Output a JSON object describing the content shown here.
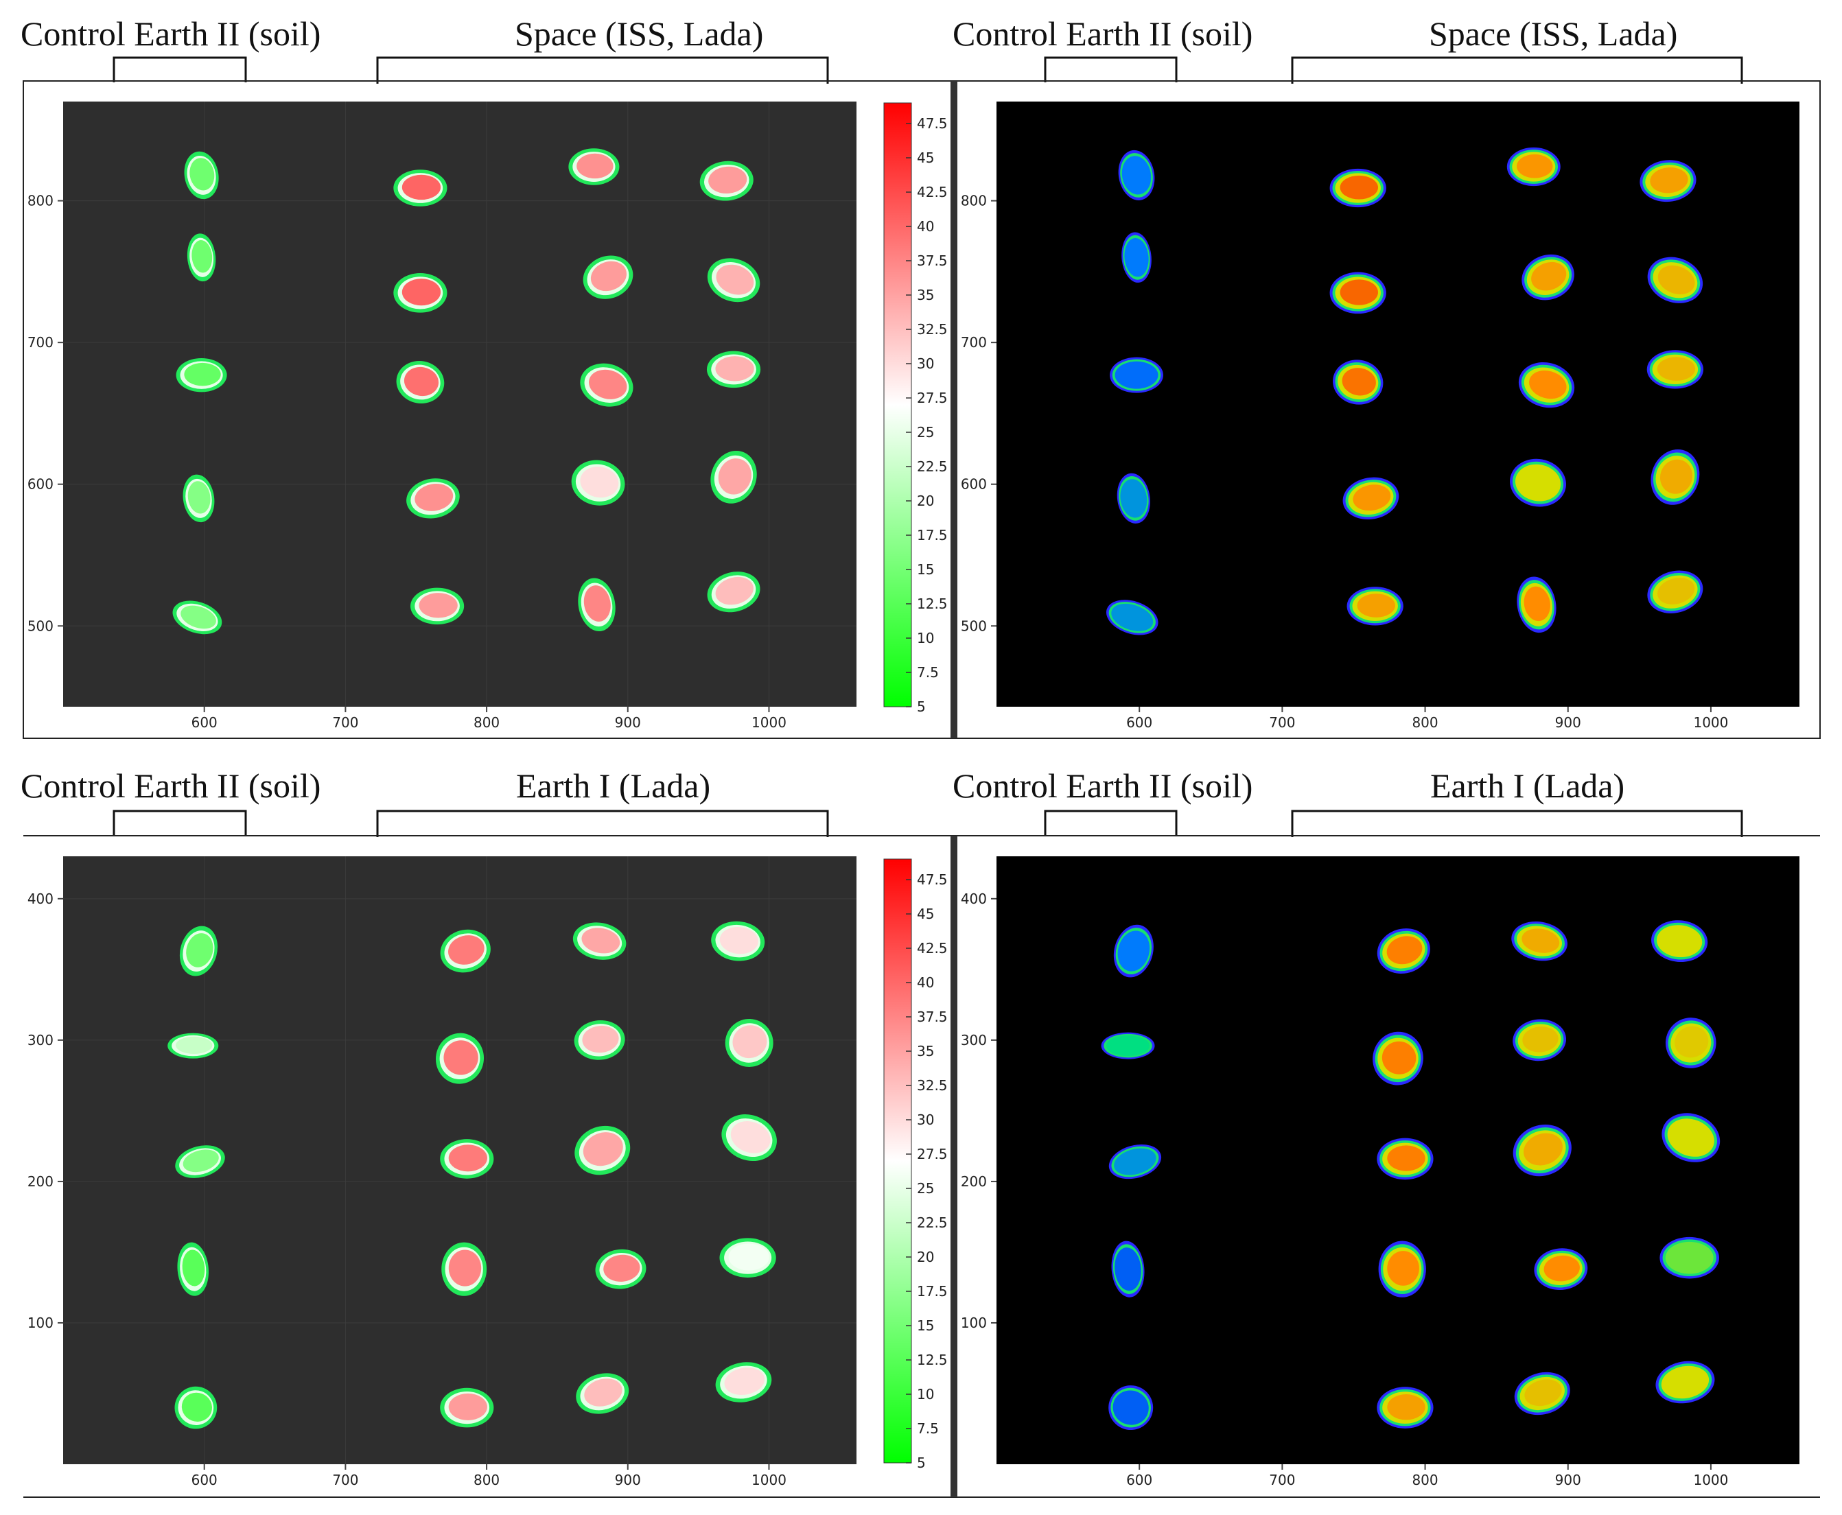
{
  "colors": {
    "page_bg": "#ffffff",
    "dark_plot_bg": "#2e2e2e",
    "black_plot_bg": "#000000",
    "separator": "#333333",
    "frame": "#222222"
  },
  "rows": [
    {
      "id": "top",
      "headings": {
        "left": {
          "control": "Control Earth II (soil)",
          "treated": "Space (ISS, Lada)"
        },
        "right": {
          "control": "Control Earth II (soil)",
          "treated": "Space (ISS, Lada)"
        }
      },
      "y_ticks": [
        "500",
        "600",
        "700",
        "800"
      ],
      "y_range": [
        443,
        870
      ],
      "x_ticks": [
        "600",
        "700",
        "800",
        "900",
        "1000"
      ],
      "x_range": [
        500,
        1062
      ],
      "colorbar_ticks": [
        "5",
        "7.5",
        "10",
        "12.5",
        "15",
        "17.5",
        "20",
        "22.5",
        "25",
        "27.5",
        "30",
        "32.5",
        "35",
        "37.5",
        "40",
        "42.5",
        "45",
        "47.5"
      ]
    },
    {
      "id": "bottom",
      "headings": {
        "left": {
          "control": "Control Earth II (soil)",
          "treated": "Earth I  (Lada)"
        },
        "right": {
          "control": "Control Earth II (soil)",
          "treated": "Earth I  (Lada)"
        }
      },
      "y_ticks": [
        "100",
        "200",
        "300",
        "400"
      ],
      "y_range": [
        0,
        430
      ],
      "x_ticks": [
        "600",
        "700",
        "800",
        "900",
        "1000"
      ],
      "x_range": [
        500,
        1062
      ],
      "colorbar_ticks": [
        "5",
        "7.5",
        "10",
        "12.5",
        "15",
        "17.5",
        "20",
        "22.5",
        "25",
        "27.5",
        "30",
        "32.5",
        "35",
        "37.5",
        "40",
        "42.5",
        "45",
        "47.5"
      ]
    }
  ],
  "colorbar": {
    "min": 5,
    "max": 49,
    "color_low": "#00ff00",
    "color_mid": "#ffffff",
    "color_high": "#ff0000"
  },
  "seeds": {
    "top": [
      {
        "x": 598,
        "y": 818,
        "rx": 12,
        "ry": 17,
        "rot": -10,
        "v": 14,
        "group": "control"
      },
      {
        "x": 598,
        "y": 760,
        "rx": 10,
        "ry": 17,
        "rot": -5,
        "v": 14,
        "group": "control"
      },
      {
        "x": 598,
        "y": 677,
        "rx": 18,
        "ry": 12,
        "rot": 0,
        "v": 13,
        "group": "control"
      },
      {
        "x": 596,
        "y": 590,
        "rx": 11,
        "ry": 17,
        "rot": -8,
        "v": 16,
        "group": "control"
      },
      {
        "x": 595,
        "y": 506,
        "rx": 18,
        "ry": 11,
        "rot": 18,
        "v": 16,
        "group": "control"
      },
      {
        "x": 753,
        "y": 809,
        "rx": 19,
        "ry": 13,
        "rot": 0,
        "v": 41,
        "group": "treated"
      },
      {
        "x": 753,
        "y": 735,
        "rx": 19,
        "ry": 14,
        "rot": 0,
        "v": 41,
        "group": "treated"
      },
      {
        "x": 753,
        "y": 672,
        "rx": 17,
        "ry": 15,
        "rot": 10,
        "v": 40,
        "group": "treated"
      },
      {
        "x": 762,
        "y": 590,
        "rx": 19,
        "ry": 14,
        "rot": -10,
        "v": 37,
        "group": "treated"
      },
      {
        "x": 765,
        "y": 514,
        "rx": 19,
        "ry": 13,
        "rot": 0,
        "v": 36,
        "group": "treated"
      },
      {
        "x": 876,
        "y": 824,
        "rx": 18,
        "ry": 13,
        "rot": 0,
        "v": 37,
        "group": "treated"
      },
      {
        "x": 886,
        "y": 746,
        "rx": 18,
        "ry": 15,
        "rot": -20,
        "v": 36,
        "group": "treated"
      },
      {
        "x": 885,
        "y": 670,
        "rx": 19,
        "ry": 15,
        "rot": 15,
        "v": 38,
        "group": "treated"
      },
      {
        "x": 879,
        "y": 601,
        "rx": 19,
        "ry": 16,
        "rot": 10,
        "v": 30,
        "group": "treated"
      },
      {
        "x": 878,
        "y": 515,
        "rx": 13,
        "ry": 19,
        "rot": -10,
        "v": 38,
        "group": "treated"
      },
      {
        "x": 970,
        "y": 814,
        "rx": 19,
        "ry": 14,
        "rot": -5,
        "v": 36,
        "group": "treated"
      },
      {
        "x": 975,
        "y": 744,
        "rx": 19,
        "ry": 15,
        "rot": 20,
        "v": 34,
        "group": "treated"
      },
      {
        "x": 975,
        "y": 681,
        "rx": 19,
        "ry": 13,
        "rot": 0,
        "v": 34,
        "group": "treated"
      },
      {
        "x": 975,
        "y": 605,
        "rx": 16,
        "ry": 19,
        "rot": 20,
        "v": 35,
        "group": "treated"
      },
      {
        "x": 975,
        "y": 524,
        "rx": 19,
        "ry": 14,
        "rot": -15,
        "v": 33,
        "group": "treated"
      }
    ],
    "bottom": [
      {
        "x": 596,
        "y": 363,
        "rx": 13,
        "ry": 18,
        "rot": 15,
        "v": 14,
        "group": "control"
      },
      {
        "x": 592,
        "y": 296,
        "rx": 18,
        "ry": 9,
        "rot": 0,
        "v": 22,
        "group": "control"
      },
      {
        "x": 597,
        "y": 214,
        "rx": 18,
        "ry": 11,
        "rot": -15,
        "v": 16,
        "group": "control"
      },
      {
        "x": 592,
        "y": 138,
        "rx": 11,
        "ry": 19,
        "rot": -5,
        "v": 12,
        "group": "control"
      },
      {
        "x": 594,
        "y": 40,
        "rx": 15,
        "ry": 15,
        "rot": 20,
        "v": 12,
        "group": "control"
      },
      {
        "x": 785,
        "y": 363,
        "rx": 18,
        "ry": 15,
        "rot": -15,
        "v": 39,
        "group": "treated"
      },
      {
        "x": 781,
        "y": 287,
        "rx": 17,
        "ry": 18,
        "rot": 10,
        "v": 39,
        "group": "treated"
      },
      {
        "x": 786,
        "y": 216,
        "rx": 19,
        "ry": 14,
        "rot": 0,
        "v": 39,
        "group": "treated"
      },
      {
        "x": 784,
        "y": 138,
        "rx": 16,
        "ry": 19,
        "rot": 0,
        "v": 38,
        "group": "treated"
      },
      {
        "x": 786,
        "y": 40,
        "rx": 19,
        "ry": 14,
        "rot": 0,
        "v": 36,
        "group": "treated"
      },
      {
        "x": 880,
        "y": 370,
        "rx": 19,
        "ry": 13,
        "rot": 10,
        "v": 35,
        "group": "treated"
      },
      {
        "x": 880,
        "y": 300,
        "rx": 18,
        "ry": 14,
        "rot": -5,
        "v": 33,
        "group": "treated"
      },
      {
        "x": 882,
        "y": 222,
        "rx": 20,
        "ry": 17,
        "rot": -20,
        "v": 35,
        "group": "treated"
      },
      {
        "x": 895,
        "y": 138,
        "rx": 18,
        "ry": 14,
        "rot": -5,
        "v": 38,
        "group": "treated"
      },
      {
        "x": 882,
        "y": 50,
        "rx": 19,
        "ry": 14,
        "rot": -15,
        "v": 33,
        "group": "treated"
      },
      {
        "x": 978,
        "y": 370,
        "rx": 19,
        "ry": 14,
        "rot": 5,
        "v": 30,
        "group": "treated"
      },
      {
        "x": 986,
        "y": 298,
        "rx": 17,
        "ry": 17,
        "rot": -20,
        "v": 32,
        "group": "treated"
      },
      {
        "x": 986,
        "y": 231,
        "rx": 20,
        "ry": 16,
        "rot": 20,
        "v": 30,
        "group": "treated"
      },
      {
        "x": 985,
        "y": 146,
        "rx": 20,
        "ry": 14,
        "rot": 0,
        "v": 26,
        "group": "treated"
      },
      {
        "x": 982,
        "y": 58,
        "rx": 20,
        "ry": 14,
        "rot": -10,
        "v": 30,
        "group": "treated"
      }
    ]
  }
}
